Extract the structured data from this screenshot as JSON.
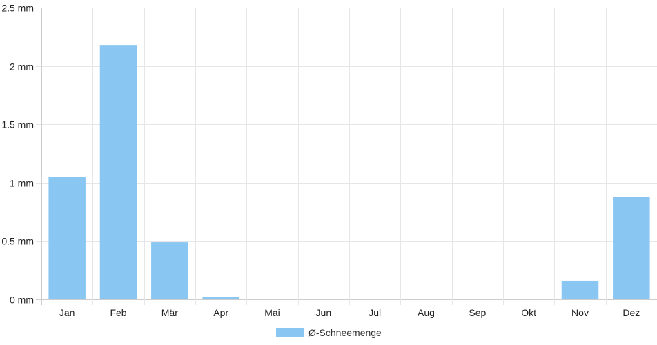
{
  "chart_data": {
    "type": "bar",
    "categories": [
      "Jan",
      "Feb",
      "Mär",
      "Apr",
      "Mai",
      "Jun",
      "Jul",
      "Aug",
      "Sep",
      "Okt",
      "Nov",
      "Dez"
    ],
    "series": [
      {
        "name": "Ø-Schneemenge",
        "values": [
          1.05,
          2.18,
          0.49,
          0.02,
          0,
          0,
          0,
          0,
          0,
          0.005,
          0.16,
          0.88
        ],
        "color": "#89c7f2"
      }
    ],
    "title": "",
    "xlabel": "",
    "ylabel": "",
    "ylim": [
      0,
      2.5
    ],
    "y_ticks": [
      0,
      0.5,
      1,
      1.5,
      2,
      2.5
    ],
    "y_tick_labels": [
      "0 mm",
      "0.5 mm",
      "1 mm",
      "1.5 mm",
      "2 mm",
      "2.5 mm"
    ],
    "grid": true,
    "legend_position": "bottom-center",
    "colors": {
      "grid": "#e6e6e6",
      "axis": "#cccccc",
      "bar": "#89c7f2"
    }
  }
}
